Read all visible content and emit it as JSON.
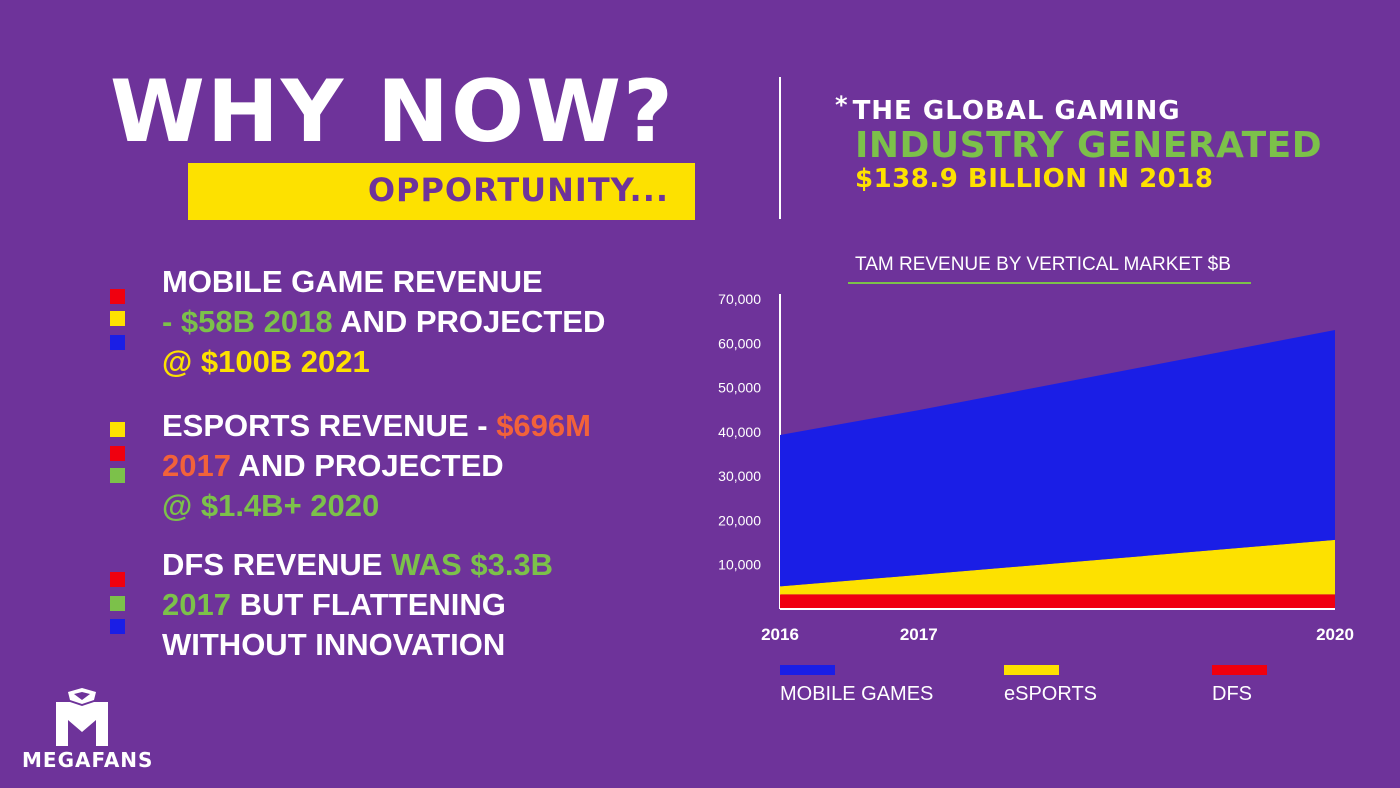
{
  "heading": "WHY NOW?",
  "opportunity": "OPPORTUNITY...",
  "stat": {
    "marker": "*",
    "line1": "THE GLOBAL GAMING",
    "line2": "INDUSTRY GENERATED",
    "line3": "$138.9 BILLION IN 2018"
  },
  "bullets": [
    {
      "squares": [
        "#f0000f",
        "#fde100",
        "#1a1ee6"
      ],
      "lines": [
        [
          {
            "text": "MOBILE GAME REVENUE",
            "color": "#ffffff"
          }
        ],
        [
          {
            "text": "- $58B 2018",
            "color": "#7cc14a"
          },
          {
            "text": " AND PROJECTED",
            "color": "#ffffff"
          }
        ],
        [
          {
            "text": "@ $100B 2021",
            "color": "#fde100"
          }
        ]
      ]
    },
    {
      "squares": [
        "#fde100",
        "#f0000f",
        "#7cc14a"
      ],
      "lines": [
        [
          {
            "text": "ESPORTS REVENUE - ",
            "color": "#ffffff"
          },
          {
            "text": "$696M",
            "color": "#f2623a"
          }
        ],
        [
          {
            "text": "2017",
            "color": "#f2623a"
          },
          {
            "text": " AND PROJECTED",
            "color": "#ffffff"
          }
        ],
        [
          {
            "text": "@ $1.4B+ 2020",
            "color": "#7cc14a"
          }
        ]
      ]
    },
    {
      "squares": [
        "#f0000f",
        "#7cc14a",
        "#1a1ee6"
      ],
      "lines": [
        [
          {
            "text": "DFS REVENUE ",
            "color": "#ffffff"
          },
          {
            "text": "WAS $3.3B",
            "color": "#7cc14a"
          }
        ],
        [
          {
            "text": "2017",
            "color": "#7cc14a"
          },
          {
            "text": " BUT FLATTENING",
            "color": "#ffffff"
          }
        ],
        [
          {
            "text": "WITHOUT INNOVATION",
            "color": "#ffffff"
          }
        ]
      ]
    }
  ],
  "chart_data": {
    "type": "area",
    "title": "TAM REVENUE BY VERTICAL MARKET $B",
    "x": [
      "2016",
      "2017",
      "2020"
    ],
    "stacked": true,
    "series": [
      {
        "name": "DFS",
        "values": [
          3300,
          3300,
          3300
        ],
        "color": "#f0000f"
      },
      {
        "name": "eSPORTS",
        "values": [
          1800,
          4400,
          12300
        ],
        "color": "#fde100"
      },
      {
        "name": "MOBILE GAMES",
        "values": [
          34200,
          37200,
          47400
        ],
        "color": "#1a1ee6"
      }
    ],
    "legend_order": [
      "MOBILE GAMES",
      "eSPORTS",
      "DFS"
    ],
    "y_ticks": [
      "10,000",
      "20,000",
      "30,000",
      "40,000",
      "50,000",
      "60,000",
      "70,000"
    ],
    "y_tick_values": [
      10000,
      20000,
      30000,
      40000,
      50000,
      60000,
      70000
    ],
    "ylim": [
      0,
      70000
    ],
    "legend_position": "bottom",
    "grid": false
  },
  "logo": {
    "text": "MEGAFANS",
    "icon": "megafans-logo-icon"
  }
}
